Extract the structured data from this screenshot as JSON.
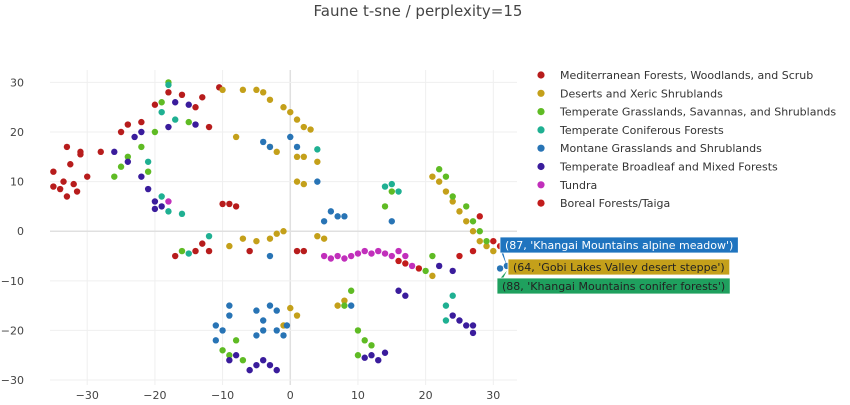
{
  "chart_data": {
    "type": "scatter",
    "title": "Faune t-sne / perplexity=15",
    "xlim": [
      -35.5,
      33.5
    ],
    "ylim": [
      -31,
      32.5
    ],
    "xticks": [
      -30,
      -20,
      -10,
      0,
      10,
      20,
      30
    ],
    "yticks": [
      -30,
      -20,
      -10,
      0,
      10,
      20,
      30
    ],
    "grid": true,
    "legend_placement": "top-right",
    "series": [
      {
        "name": "Mediterranean Forests, Woodlands, and Scrub",
        "color": "#b71c1c",
        "points": [
          [
            -34,
            8.5
          ],
          [
            -33.5,
            10
          ],
          [
            -32,
            9.5
          ],
          [
            -31.5,
            8
          ],
          [
            -33,
            7
          ],
          [
            -35,
            9
          ],
          [
            -32.5,
            13.5
          ],
          [
            -31,
            15.5
          ],
          [
            -30,
            11
          ],
          [
            -28,
            16
          ],
          [
            -25,
            20
          ],
          [
            -24,
            21.5
          ],
          [
            -22,
            22
          ],
          [
            -20,
            25.5
          ],
          [
            -18,
            28
          ],
          [
            -16,
            27.5
          ],
          [
            -14,
            25
          ],
          [
            -12,
            21
          ],
          [
            -10,
            5.5
          ],
          [
            -9,
            5.5
          ],
          [
            -8,
            5
          ],
          [
            -13,
            -2.5
          ],
          [
            -12,
            -4
          ],
          [
            -14,
            -4
          ],
          [
            -10.5,
            29
          ],
          [
            -13,
            27
          ],
          [
            -6,
            -4
          ],
          [
            1,
            -4
          ],
          [
            2,
            -4
          ],
          [
            -17,
            -5
          ],
          [
            -33,
            17
          ],
          [
            -31,
            16
          ],
          [
            -35,
            12
          ]
        ]
      },
      {
        "name": "Deserts and Xeric Shrublands",
        "color": "#c4a01a",
        "points": [
          [
            -10,
            28.5
          ],
          [
            -7,
            28.5
          ],
          [
            -5,
            28.5
          ],
          [
            -4,
            28
          ],
          [
            -3,
            26.5
          ],
          [
            -1,
            25
          ],
          [
            0,
            24
          ],
          [
            1,
            22.5
          ],
          [
            2,
            21
          ],
          [
            3,
            20.5
          ],
          [
            -8,
            19
          ],
          [
            -3,
            17
          ],
          [
            -2,
            16
          ],
          [
            1,
            15
          ],
          [
            2,
            15
          ],
          [
            4,
            14
          ],
          [
            1,
            10
          ],
          [
            2,
            9.5
          ],
          [
            -2,
            -0.5
          ],
          [
            -1,
            0
          ],
          [
            -3,
            -1.5
          ],
          [
            -5,
            -2
          ],
          [
            -7,
            -1.5
          ],
          [
            -9,
            -3
          ],
          [
            4,
            -1
          ],
          [
            5,
            -1.5
          ],
          [
            21,
            11
          ],
          [
            22,
            10
          ],
          [
            23,
            8
          ],
          [
            24,
            6
          ],
          [
            25,
            4
          ],
          [
            26,
            2
          ],
          [
            27,
            0
          ],
          [
            28,
            -2
          ],
          [
            29,
            -3
          ],
          [
            30,
            -4
          ],
          [
            21,
            -9
          ],
          [
            8,
            -14
          ],
          [
            7,
            -15
          ],
          [
            0,
            -15.5
          ],
          [
            1,
            -17
          ],
          [
            -1,
            -19
          ]
        ]
      },
      {
        "name": "Temperate Grasslands, Savannas, and Shrublands",
        "color": "#5fbb24",
        "points": [
          [
            -18,
            30
          ],
          [
            -19,
            26
          ],
          [
            -20,
            20
          ],
          [
            -22,
            17
          ],
          [
            -24,
            15
          ],
          [
            -25,
            13
          ],
          [
            -26,
            11
          ],
          [
            -21,
            12
          ],
          [
            -15,
            22
          ],
          [
            -16,
            -4
          ],
          [
            15,
            8
          ],
          [
            14,
            5
          ],
          [
            22,
            12.5
          ],
          [
            23,
            11
          ],
          [
            24,
            7
          ],
          [
            26,
            5
          ],
          [
            27,
            2
          ],
          [
            28,
            0
          ],
          [
            29,
            -2
          ],
          [
            9,
            -12
          ],
          [
            8,
            -15
          ],
          [
            10,
            -20
          ],
          [
            11,
            -22
          ],
          [
            12,
            -23
          ],
          [
            10,
            -25
          ],
          [
            -10,
            -24
          ],
          [
            -9,
            -25
          ],
          [
            -7,
            -26
          ],
          [
            -8,
            -22
          ],
          [
            20,
            -8
          ],
          [
            21,
            -5
          ]
        ]
      },
      {
        "name": "Temperate Coniferous Forests",
        "color": "#1fb092",
        "points": [
          [
            -18,
            29.5
          ],
          [
            -19,
            24
          ],
          [
            -17,
            22.5
          ],
          [
            -21,
            14
          ],
          [
            -19,
            7
          ],
          [
            -18,
            4
          ],
          [
            -16,
            3.5
          ],
          [
            -12,
            -1
          ],
          [
            14,
            9
          ],
          [
            15,
            9.5
          ],
          [
            16,
            8
          ],
          [
            23,
            -15
          ],
          [
            23,
            -18
          ],
          [
            -15,
            -4.5
          ],
          [
            4,
            16.5
          ],
          [
            24,
            -13
          ]
        ]
      },
      {
        "name": "Montane Grasslands and Shrublands",
        "color": "#2874b5",
        "points": [
          [
            -3,
            17
          ],
          [
            -4,
            18
          ],
          [
            0,
            19
          ],
          [
            1,
            17
          ],
          [
            4,
            10
          ],
          [
            6,
            4
          ],
          [
            5,
            2
          ],
          [
            7,
            3
          ],
          [
            8,
            3
          ],
          [
            -9,
            -15
          ],
          [
            -9,
            -17
          ],
          [
            -11,
            -19
          ],
          [
            -10,
            -20
          ],
          [
            -11,
            -22
          ],
          [
            -5,
            -16
          ],
          [
            -3,
            -15
          ],
          [
            -4,
            -18
          ],
          [
            -2,
            -20
          ],
          [
            -1,
            -21
          ],
          [
            -5,
            -21
          ],
          [
            -3,
            -5
          ],
          [
            -2,
            -16
          ],
          [
            9,
            -15
          ],
          [
            32,
            -7
          ],
          [
            31,
            -7.5
          ],
          [
            15,
            2
          ],
          [
            -0.5,
            -19
          ],
          [
            -4,
            -20
          ]
        ]
      },
      {
        "name": "Temperate Broadleaf and Mixed Forests",
        "color": "#3a1c9c",
        "points": [
          [
            -26,
            16
          ],
          [
            -24,
            14
          ],
          [
            -22,
            11
          ],
          [
            -21,
            8.5
          ],
          [
            -20,
            6
          ],
          [
            -19,
            5
          ],
          [
            -20,
            4.5
          ],
          [
            -18,
            21
          ],
          [
            -22,
            20
          ],
          [
            -23,
            19
          ],
          [
            -17,
            26
          ],
          [
            -15,
            25.5
          ],
          [
            -14,
            21.5
          ],
          [
            16,
            -12
          ],
          [
            17,
            -13
          ],
          [
            24,
            -17
          ],
          [
            25,
            -18
          ],
          [
            26,
            -19
          ],
          [
            27,
            -19
          ],
          [
            27,
            -20.5
          ],
          [
            11,
            -25.5
          ],
          [
            12,
            -25
          ],
          [
            13,
            -26
          ],
          [
            14,
            -24.5
          ],
          [
            -3,
            -27
          ],
          [
            -2,
            -28
          ],
          [
            -4,
            -26
          ],
          [
            -5,
            -27
          ],
          [
            -6,
            -28
          ],
          [
            -8,
            -25
          ],
          [
            -9,
            -26
          ],
          [
            24,
            -8
          ],
          [
            22,
            -7
          ]
        ]
      },
      {
        "name": "Tundra",
        "color": "#c12fbb",
        "points": [
          [
            5,
            -5
          ],
          [
            6,
            -5.5
          ],
          [
            7,
            -5
          ],
          [
            8,
            -5.5
          ],
          [
            9,
            -5
          ],
          [
            10,
            -4.5
          ],
          [
            11,
            -4
          ],
          [
            12,
            -4.5
          ],
          [
            13,
            -4
          ],
          [
            14,
            -4.5
          ],
          [
            15,
            -5
          ],
          [
            16,
            -4
          ],
          [
            17,
            -5
          ],
          [
            18,
            -7
          ],
          [
            -18,
            6
          ]
        ]
      },
      {
        "name": "Boreal Forests/Taiga",
        "color": "#c21c1c",
        "points": [
          [
            16,
            -6
          ],
          [
            17,
            -6.5
          ],
          [
            19,
            -7.5
          ],
          [
            25,
            -5
          ],
          [
            27,
            -4
          ],
          [
            30,
            -2
          ],
          [
            31,
            -3
          ],
          [
            28,
            3
          ]
        ]
      }
    ],
    "annotations": [
      {
        "text": "(87, 'Khangai Mountains alpine meadow')",
        "x": 32,
        "y": -7,
        "bg": "#1f74bf",
        "fg": "#ffffff"
      },
      {
        "text": "(64, 'Gobi Lakes Valley desert steppe')",
        "x": 32.5,
        "y": -7.5,
        "bg": "#c4a01a",
        "fg": "#222222"
      },
      {
        "text": "(88, 'Khangai Mountains conifer forests')",
        "x": 32,
        "y": -8,
        "bg": "#1fa05e",
        "fg": "#222222"
      }
    ]
  }
}
